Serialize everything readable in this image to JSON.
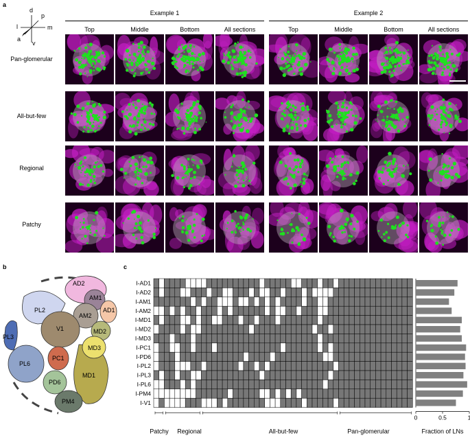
{
  "panels": {
    "a": "a",
    "b": "b",
    "c": "c"
  },
  "axes_label": {
    "d": "d",
    "p": "p",
    "l": "l",
    "m": "m",
    "a": "a",
    "v": "v"
  },
  "examples": [
    "Example 1",
    "Example 2"
  ],
  "columns": [
    "Top",
    "Middle",
    "Bottom",
    "All sections"
  ],
  "rows": [
    "Pan-glomerular",
    "All-but-few",
    "Regional",
    "Patchy"
  ],
  "map_labels": [
    "AD2",
    "AM1",
    "AD1",
    "AM2",
    "PL2",
    "V1",
    "MD2",
    "PL3",
    "MD3",
    "PC1",
    "PL6",
    "MD1",
    "PD6",
    "PM4"
  ],
  "colors": {
    "bg_tile": "#1c001c",
    "magenta": "#c21ec2",
    "green": "#1fe01f",
    "cell_dark": "#777777",
    "cell_light": "#ffffff",
    "bar": "#808080"
  },
  "chart_data": {
    "type": "heatmap_with_bar",
    "rows": [
      "I-AD1",
      "I-AD2",
      "I-AM1",
      "I-AM2",
      "I-MD1",
      "I-MD2",
      "I-MD3",
      "I-PC1",
      "I-PD6",
      "I-PL2",
      "I-PL3",
      "I-PL6",
      "I-PM4",
      "I-V1"
    ],
    "fraction_of_lns": [
      0.78,
      0.72,
      0.62,
      0.67,
      0.86,
      0.83,
      0.86,
      0.94,
      0.92,
      0.93,
      0.89,
      0.96,
      0.88,
      0.75
    ],
    "xlim": [
      0,
      1
    ],
    "xticks": [
      "0",
      "0.5",
      "1"
    ],
    "xlabel": "Fraction of LNs",
    "categories": [
      "Patchy",
      "Regional",
      "All-but-few",
      "Pan-glomerular"
    ]
  }
}
